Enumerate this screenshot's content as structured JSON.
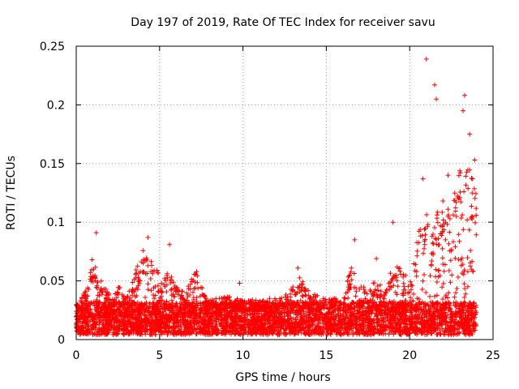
{
  "chart_data": {
    "type": "scatter",
    "title": "Day 197 of 2019, Rate Of TEC Index for receiver savu",
    "xlabel": "GPS time / hours",
    "ylabel": "ROTI / TECUs",
    "xlim": [
      0,
      25
    ],
    "ylim": [
      0,
      0.25
    ],
    "xticks": [
      0,
      5,
      10,
      15,
      20,
      25
    ],
    "yticks": [
      0,
      0.05,
      0.1,
      0.15,
      0.2,
      0.25
    ],
    "ytick_labels": [
      "0",
      "0.05",
      "0.1",
      "0.15",
      "0.2",
      "0.25"
    ],
    "grid": true,
    "marker": "+",
    "series_color": "#ff0000",
    "observation_span_hours": [
      0,
      24
    ],
    "background_level_approx": 0.02,
    "notable_points": [
      {
        "x": 1.2,
        "y": 0.091
      },
      {
        "x": 4.3,
        "y": 0.087
      },
      {
        "x": 5.6,
        "y": 0.081
      },
      {
        "x": 9.8,
        "y": 0.048
      },
      {
        "x": 13.3,
        "y": 0.061
      },
      {
        "x": 16.7,
        "y": 0.085
      },
      {
        "x": 18.0,
        "y": 0.069
      },
      {
        "x": 19.0,
        "y": 0.1
      },
      {
        "x": 20.8,
        "y": 0.137
      },
      {
        "x": 21.0,
        "y": 0.239
      },
      {
        "x": 21.5,
        "y": 0.217
      },
      {
        "x": 21.6,
        "y": 0.205
      },
      {
        "x": 22.3,
        "y": 0.14
      },
      {
        "x": 23.2,
        "y": 0.195
      },
      {
        "x": 23.3,
        "y": 0.208
      },
      {
        "x": 23.6,
        "y": 0.175
      },
      {
        "x": 23.9,
        "y": 0.153
      }
    ],
    "activity_envelope": [
      {
        "x": 0.0,
        "y": 0.03
      },
      {
        "x": 0.5,
        "y": 0.04
      },
      {
        "x": 0.8,
        "y": 0.055
      },
      {
        "x": 1.0,
        "y": 0.075
      },
      {
        "x": 1.5,
        "y": 0.05
      },
      {
        "x": 2.0,
        "y": 0.04
      },
      {
        "x": 2.5,
        "y": 0.05
      },
      {
        "x": 3.0,
        "y": 0.035
      },
      {
        "x": 3.5,
        "y": 0.055
      },
      {
        "x": 4.0,
        "y": 0.08
      },
      {
        "x": 4.5,
        "y": 0.07
      },
      {
        "x": 5.0,
        "y": 0.055
      },
      {
        "x": 5.5,
        "y": 0.06
      },
      {
        "x": 6.0,
        "y": 0.045
      },
      {
        "x": 6.5,
        "y": 0.04
      },
      {
        "x": 7.2,
        "y": 0.06
      },
      {
        "x": 7.8,
        "y": 0.035
      },
      {
        "x": 8.5,
        "y": 0.035
      },
      {
        "x": 9.0,
        "y": 0.038
      },
      {
        "x": 10.0,
        "y": 0.035
      },
      {
        "x": 11.0,
        "y": 0.035
      },
      {
        "x": 12.0,
        "y": 0.035
      },
      {
        "x": 13.0,
        "y": 0.045
      },
      {
        "x": 13.5,
        "y": 0.055
      },
      {
        "x": 14.0,
        "y": 0.04
      },
      {
        "x": 15.0,
        "y": 0.035
      },
      {
        "x": 16.0,
        "y": 0.035
      },
      {
        "x": 16.5,
        "y": 0.065
      },
      {
        "x": 17.0,
        "y": 0.045
      },
      {
        "x": 17.5,
        "y": 0.045
      },
      {
        "x": 18.0,
        "y": 0.05
      },
      {
        "x": 18.5,
        "y": 0.045
      },
      {
        "x": 19.0,
        "y": 0.065
      },
      {
        "x": 19.5,
        "y": 0.06
      },
      {
        "x": 20.0,
        "y": 0.05
      },
      {
        "x": 20.5,
        "y": 0.09
      },
      {
        "x": 21.0,
        "y": 0.11
      },
      {
        "x": 21.5,
        "y": 0.1
      },
      {
        "x": 22.0,
        "y": 0.13
      },
      {
        "x": 22.5,
        "y": 0.11
      },
      {
        "x": 23.0,
        "y": 0.15
      },
      {
        "x": 23.5,
        "y": 0.15
      },
      {
        "x": 24.0,
        "y": 0.13
      }
    ]
  }
}
